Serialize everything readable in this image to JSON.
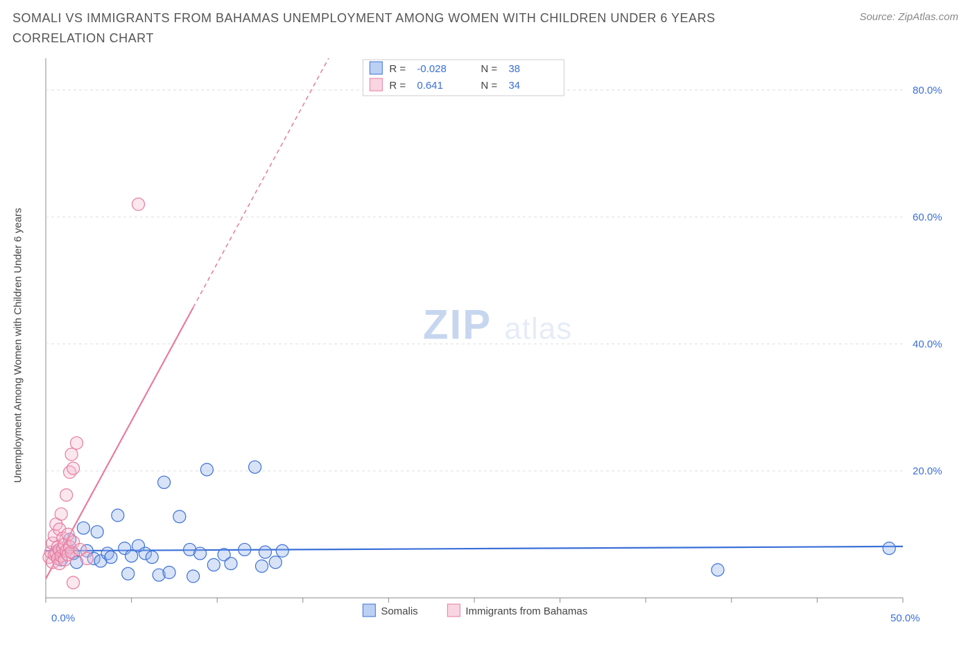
{
  "title": "SOMALI VS IMMIGRANTS FROM BAHAMAS UNEMPLOYMENT AMONG WOMEN WITH CHILDREN UNDER 6 YEARS CORRELATION CHART",
  "source_label": "Source: ZipAtlas.com",
  "ylabel": "Unemployment Among Women with Children Under 6 years",
  "watermark_a": "ZIP",
  "watermark_b": "atlas",
  "chart": {
    "type": "scatter",
    "x_domain": [
      0,
      50
    ],
    "y_domain": [
      0,
      85
    ],
    "x_ticks": [
      0,
      5,
      10,
      15,
      20,
      25,
      30,
      35,
      40,
      45,
      50
    ],
    "x_tick_labels": {
      "0": "0.0%",
      "50": "50.0%"
    },
    "y_ticks": [
      20,
      40,
      60,
      80
    ],
    "y_tick_labels": {
      "20": "20.0%",
      "40": "40.0%",
      "60": "60.0%",
      "80": "80.0%"
    },
    "background_color": "#ffffff",
    "grid_color": "#dddddd",
    "axis_color": "#888888",
    "text_accent_color": "#3a6fd8",
    "marker_radius": 9,
    "marker_stroke_width": 1.2,
    "marker_fill_opacity": 0.35,
    "trend_line_width": 2.2,
    "trend_dash": "6 5",
    "series": [
      {
        "key": "somalis",
        "label": "Somalis",
        "color_stroke": "#3a6fd8",
        "color_fill": "#8fb0ec",
        "r_value": "-0.028",
        "n_value": "38",
        "trend": {
          "x1": 0,
          "y1": 7.4,
          "x2": 50,
          "y2": 8.1,
          "dash_after_x": 50
        },
        "points": [
          [
            0.6,
            7.2
          ],
          [
            0.9,
            6.0
          ],
          [
            1.4,
            9.2
          ],
          [
            1.6,
            7.0
          ],
          [
            1.8,
            5.6
          ],
          [
            2.2,
            11.0
          ],
          [
            2.4,
            7.4
          ],
          [
            2.8,
            6.2
          ],
          [
            3.0,
            10.4
          ],
          [
            3.2,
            5.8
          ],
          [
            3.6,
            7.0
          ],
          [
            3.8,
            6.4
          ],
          [
            4.2,
            13.0
          ],
          [
            4.6,
            7.8
          ],
          [
            4.8,
            3.8
          ],
          [
            5.0,
            6.6
          ],
          [
            5.4,
            8.2
          ],
          [
            5.8,
            7.0
          ],
          [
            6.2,
            6.4
          ],
          [
            6.6,
            3.6
          ],
          [
            6.9,
            18.2
          ],
          [
            7.2,
            4.0
          ],
          [
            7.8,
            12.8
          ],
          [
            8.4,
            7.6
          ],
          [
            8.6,
            3.4
          ],
          [
            9.0,
            7.0
          ],
          [
            9.4,
            20.2
          ],
          [
            9.8,
            5.2
          ],
          [
            10.4,
            6.8
          ],
          [
            10.8,
            5.4
          ],
          [
            11.6,
            7.6
          ],
          [
            12.2,
            20.6
          ],
          [
            12.6,
            5.0
          ],
          [
            12.8,
            7.2
          ],
          [
            13.4,
            5.6
          ],
          [
            13.8,
            7.4
          ],
          [
            39.2,
            4.4
          ],
          [
            49.2,
            7.8
          ]
        ]
      },
      {
        "key": "bahamas",
        "label": "Immigrants from Bahamas",
        "color_stroke": "#e87ba0",
        "color_fill": "#f4b9cd",
        "r_value": "0.641",
        "n_value": "34",
        "trend": {
          "x1": 0,
          "y1": 3.0,
          "x2": 16.5,
          "y2": 85,
          "dash_after_x": 8.6
        },
        "points": [
          [
            0.2,
            6.4
          ],
          [
            0.3,
            7.2
          ],
          [
            0.4,
            5.6
          ],
          [
            0.4,
            8.6
          ],
          [
            0.5,
            6.8
          ],
          [
            0.5,
            9.8
          ],
          [
            0.6,
            7.0
          ],
          [
            0.6,
            11.6
          ],
          [
            0.7,
            6.2
          ],
          [
            0.7,
            8.0
          ],
          [
            0.8,
            5.4
          ],
          [
            0.8,
            7.6
          ],
          [
            0.8,
            10.8
          ],
          [
            0.9,
            6.6
          ],
          [
            0.9,
            13.2
          ],
          [
            1.0,
            7.8
          ],
          [
            1.0,
            9.4
          ],
          [
            1.1,
            6.0
          ],
          [
            1.1,
            8.4
          ],
          [
            1.2,
            7.4
          ],
          [
            1.2,
            16.2
          ],
          [
            1.3,
            6.8
          ],
          [
            1.3,
            10.0
          ],
          [
            1.4,
            8.0
          ],
          [
            1.4,
            19.8
          ],
          [
            1.5,
            7.2
          ],
          [
            1.5,
            22.6
          ],
          [
            1.6,
            8.8
          ],
          [
            1.6,
            20.4
          ],
          [
            1.8,
            24.4
          ],
          [
            2.0,
            7.6
          ],
          [
            2.4,
            6.2
          ],
          [
            1.6,
            2.4
          ],
          [
            5.4,
            62.0
          ]
        ]
      }
    ]
  },
  "legend_stats": {
    "r_label": "R =",
    "n_label": "N ="
  }
}
